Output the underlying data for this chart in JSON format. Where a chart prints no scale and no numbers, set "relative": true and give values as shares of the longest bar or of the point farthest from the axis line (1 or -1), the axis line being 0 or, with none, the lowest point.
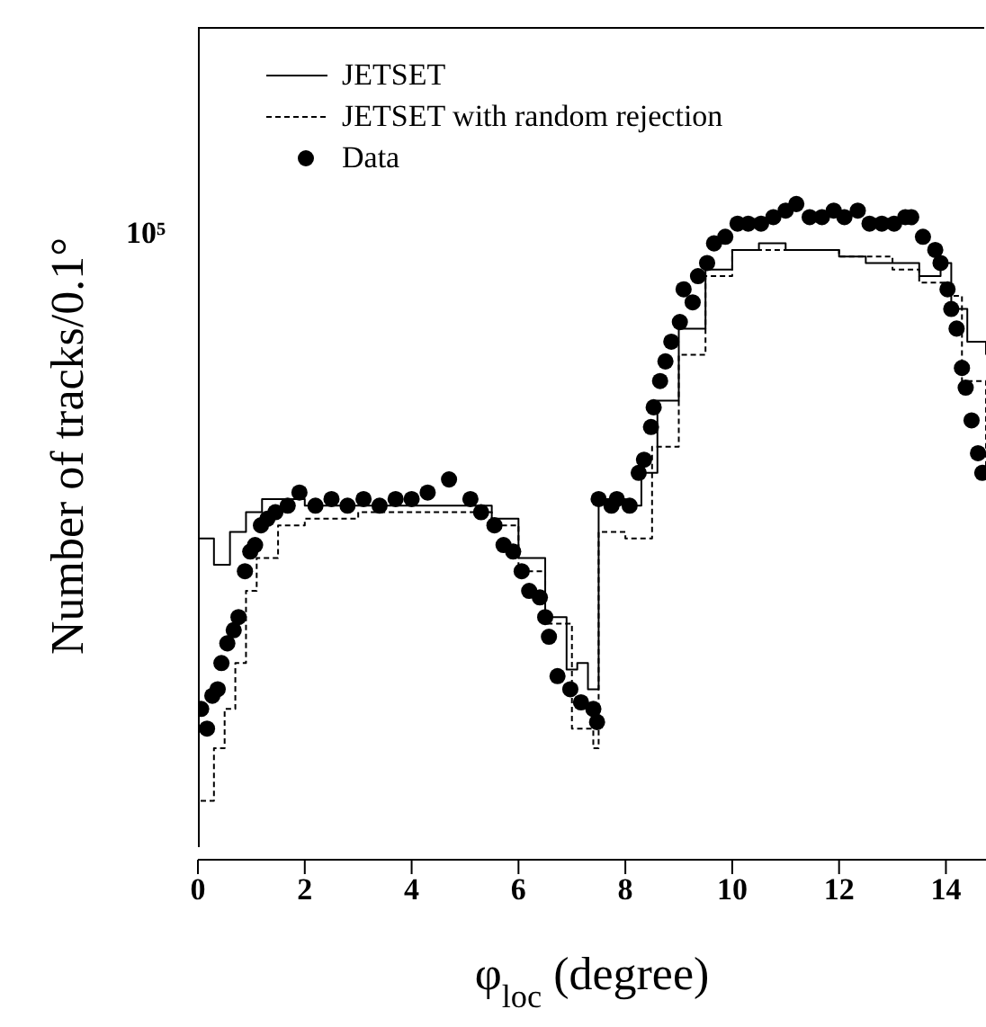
{
  "chart_data": {
    "type": "step",
    "relative": true,
    "xlabel": "φ$_{loc}$ (degree)",
    "ylabel": "Number of tracks/0.1°",
    "annotations": [
      "10⁵"
    ],
    "xlim": [
      0,
      14.75
    ],
    "xticks": [
      0,
      2,
      4,
      6,
      8,
      10,
      12,
      14
    ],
    "grid": false,
    "legend": "top left",
    "series": [
      {
        "name": "JETSET",
        "color": "#000000",
        "line_style": "solid",
        "marker": "none",
        "x": [
          0,
          0.3,
          0.6,
          0.9,
          1.2,
          2,
          3,
          4,
          5,
          5.5,
          6,
          6.5,
          6.9,
          7.1,
          7.3,
          7.5,
          8,
          8.3,
          8.6,
          9,
          9.5,
          10,
          10.5,
          11,
          11.5,
          12,
          12.5,
          13,
          13.5,
          13.9,
          14.1,
          14.4,
          14.75
        ],
        "values": [
          0.49,
          0.45,
          0.5,
          0.53,
          0.55,
          0.54,
          0.54,
          0.54,
          0.54,
          0.52,
          0.46,
          0.37,
          0.29,
          0.3,
          0.26,
          0.55,
          0.54,
          0.59,
          0.7,
          0.81,
          0.9,
          0.93,
          0.94,
          0.93,
          0.93,
          0.92,
          0.91,
          0.91,
          0.89,
          0.91,
          0.84,
          0.79,
          0.77
        ]
      },
      {
        "name": "JETSET with random rejection",
        "color": "#000000",
        "line_style": "dashed",
        "marker": "none",
        "x": [
          0.05,
          0.3,
          0.5,
          0.7,
          0.9,
          1.1,
          1.5,
          2,
          3,
          4,
          5,
          5.5,
          6,
          6.5,
          7,
          7.4,
          7.5,
          8,
          8.5,
          9,
          9.5,
          10,
          11,
          12,
          13,
          13.5,
          14,
          14.3,
          14.75
        ],
        "values": [
          0.09,
          0.17,
          0.23,
          0.3,
          0.41,
          0.46,
          0.51,
          0.52,
          0.53,
          0.53,
          0.53,
          0.51,
          0.44,
          0.36,
          0.2,
          0.17,
          0.5,
          0.49,
          0.63,
          0.77,
          0.89,
          0.93,
          0.93,
          0.92,
          0.9,
          0.88,
          0.86,
          0.73,
          0.59
        ]
      },
      {
        "name": "Data",
        "type": "scatter",
        "color": "#000000",
        "marker": "circle",
        "x": [
          0.06,
          0.17,
          0.27,
          0.37,
          0.44,
          0.55,
          0.67,
          0.76,
          0.88,
          0.98,
          1.07,
          1.18,
          1.3,
          1.45,
          1.68,
          1.9,
          2.2,
          2.5,
          2.8,
          3.1,
          3.4,
          3.7,
          4.0,
          4.3,
          4.7,
          5.1,
          5.3,
          5.55,
          5.72,
          5.9,
          6.06,
          6.2,
          6.4,
          6.5,
          6.57,
          6.73,
          6.97,
          7.17,
          7.4,
          7.47,
          7.5,
          7.74,
          7.84,
          8.08,
          8.25,
          8.35,
          8.48,
          8.53,
          8.65,
          8.75,
          8.86,
          9.02,
          9.09,
          9.26,
          9.36,
          9.53,
          9.66,
          9.87,
          10.1,
          10.3,
          10.54,
          10.77,
          11.0,
          11.2,
          11.45,
          11.68,
          11.9,
          12.1,
          12.35,
          12.57,
          12.8,
          13.03,
          13.24,
          13.35,
          13.57,
          13.8,
          13.9,
          14.03,
          14.1,
          14.2,
          14.3,
          14.37,
          14.48,
          14.6,
          14.68
        ],
        "values": [
          0.23,
          0.2,
          0.25,
          0.26,
          0.3,
          0.33,
          0.35,
          0.37,
          0.44,
          0.47,
          0.48,
          0.51,
          0.52,
          0.53,
          0.54,
          0.56,
          0.54,
          0.55,
          0.54,
          0.55,
          0.54,
          0.55,
          0.55,
          0.56,
          0.58,
          0.55,
          0.53,
          0.51,
          0.48,
          0.47,
          0.44,
          0.41,
          0.4,
          0.37,
          0.34,
          0.28,
          0.26,
          0.24,
          0.23,
          0.21,
          0.55,
          0.54,
          0.55,
          0.54,
          0.59,
          0.61,
          0.66,
          0.69,
          0.73,
          0.76,
          0.79,
          0.82,
          0.87,
          0.85,
          0.89,
          0.91,
          0.94,
          0.95,
          0.97,
          0.97,
          0.97,
          0.98,
          0.99,
          1,
          0.98,
          0.98,
          0.99,
          0.98,
          0.99,
          0.97,
          0.97,
          0.97,
          0.98,
          0.98,
          0.95,
          0.93,
          0.91,
          0.87,
          0.84,
          0.81,
          0.75,
          0.72,
          0.67,
          0.62,
          0.59
        ]
      }
    ]
  }
}
